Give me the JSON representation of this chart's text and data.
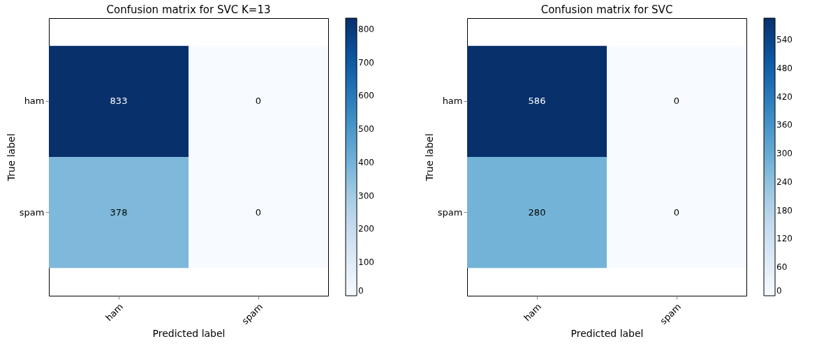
{
  "chart_data": [
    {
      "type": "heatmap",
      "title": "Confusion matrix for SVC K=13",
      "xlabel": "Predicted label",
      "ylabel": "True label",
      "categories": [
        "ham",
        "spam"
      ],
      "y_categories": [
        "ham",
        "spam"
      ],
      "cells": [
        [
          833,
          0
        ],
        [
          378,
          0
        ]
      ],
      "data_labels": true,
      "clim": [
        0,
        833
      ],
      "cticks": [
        0,
        100,
        200,
        300,
        400,
        500,
        600,
        700,
        800
      ]
    },
    {
      "type": "heatmap",
      "title": "Confusion matrix for SVC",
      "xlabel": "Predicted label",
      "ylabel": "True label",
      "categories": [
        "ham",
        "spam"
      ],
      "y_categories": [
        "ham",
        "spam"
      ],
      "cells": [
        [
          586,
          0
        ],
        [
          280,
          0
        ]
      ],
      "data_labels": true,
      "clim": [
        0,
        586
      ],
      "cticks": [
        0,
        60,
        120,
        180,
        240,
        300,
        360,
        420,
        480,
        540
      ]
    }
  ]
}
